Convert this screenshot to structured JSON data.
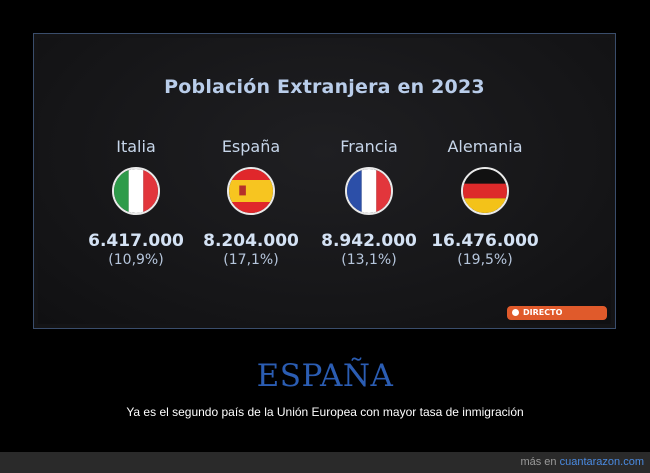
{
  "slide": {
    "title": "Población Extranjera en 2023",
    "countries": [
      {
        "name": "Italia",
        "value": "6.417.000",
        "pct": "(10,9%)",
        "flag_colors": [
          "#2e9b4a",
          "#ffffff",
          "#e2363c"
        ]
      },
      {
        "name": "España",
        "value": "8.204.000",
        "pct": "(17,1%)",
        "flag_colors": [
          "#e0272b",
          "#f7c520",
          "#e0272b"
        ]
      },
      {
        "name": "Francia",
        "value": "8.942.000",
        "pct": "(13,1%)",
        "flag_colors": [
          "#2c4fa8",
          "#ffffff",
          "#e2363c"
        ]
      },
      {
        "name": "Alemania",
        "value": "16.476.000",
        "pct": "(19,5%)",
        "flag_colors": [
          "#111111",
          "#dd2a2a",
          "#f3c219"
        ]
      }
    ],
    "live_badge": "DIRECTO",
    "live_color": "#e05a2b"
  },
  "post": {
    "heading": "ESPAÑA",
    "caption": "Ya es el segundo país de la Unión Europea con mayor tasa de inmigración",
    "credit_prefix": "más en",
    "credit_site": "cuantarazon.com",
    "heading_color": "#2b5db3"
  }
}
